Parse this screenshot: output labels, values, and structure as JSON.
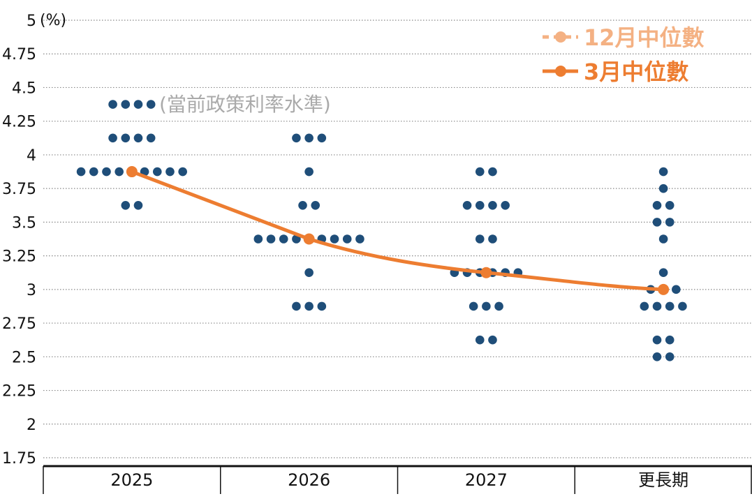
{
  "chart_data": {
    "type": "scatter",
    "unit_label": "(%)",
    "ylim": [
      1.75,
      5
    ],
    "y_ticks": [
      "5",
      "4.75",
      "4.5",
      "4.25",
      "4",
      "3.75",
      "3.5",
      "3.25",
      "3",
      "2.75",
      "2.5",
      "2.25",
      "2",
      "1.75"
    ],
    "categories": [
      "2025",
      "2026",
      "2027",
      "更長期"
    ],
    "grid": "horizontal dotted",
    "legend_position": "top-right",
    "colors": {
      "dots": "#1f4e79",
      "median_current": "#ed7d31",
      "median_previous": "#f4b183",
      "annotation": "#aaaaaa",
      "grid": "#888888"
    },
    "annotation": "(當前政策利率水準)",
    "dot_series": [
      {
        "category": "2025",
        "dots": [
          [
            4.375,
            4
          ],
          [
            4.125,
            4
          ],
          [
            3.875,
            9
          ],
          [
            3.625,
            2
          ]
        ]
      },
      {
        "category": "2026",
        "dots": [
          [
            4.125,
            3
          ],
          [
            3.875,
            1
          ],
          [
            3.625,
            2
          ],
          [
            3.375,
            9
          ],
          [
            3.125,
            1
          ],
          [
            2.875,
            3
          ]
        ]
      },
      {
        "category": "2027",
        "dots": [
          [
            3.875,
            2
          ],
          [
            3.625,
            4
          ],
          [
            3.375,
            2
          ],
          [
            3.125,
            6
          ],
          [
            2.875,
            3
          ],
          [
            2.625,
            2
          ]
        ]
      },
      {
        "category": "更長期",
        "dots": [
          [
            3.875,
            1
          ],
          [
            3.75,
            1
          ],
          [
            3.625,
            2
          ],
          [
            3.5,
            2
          ],
          [
            3.375,
            1
          ],
          [
            3.125,
            1
          ],
          [
            3.0,
            3
          ],
          [
            2.875,
            4
          ],
          [
            2.625,
            2
          ],
          [
            2.5,
            2
          ]
        ]
      }
    ],
    "series": [
      {
        "name": "12月中位數",
        "style": "dashed",
        "values": []
      },
      {
        "name": "3月中位數",
        "style": "solid",
        "values": [
          3.875,
          3.375,
          3.125,
          3.0
        ]
      }
    ]
  }
}
